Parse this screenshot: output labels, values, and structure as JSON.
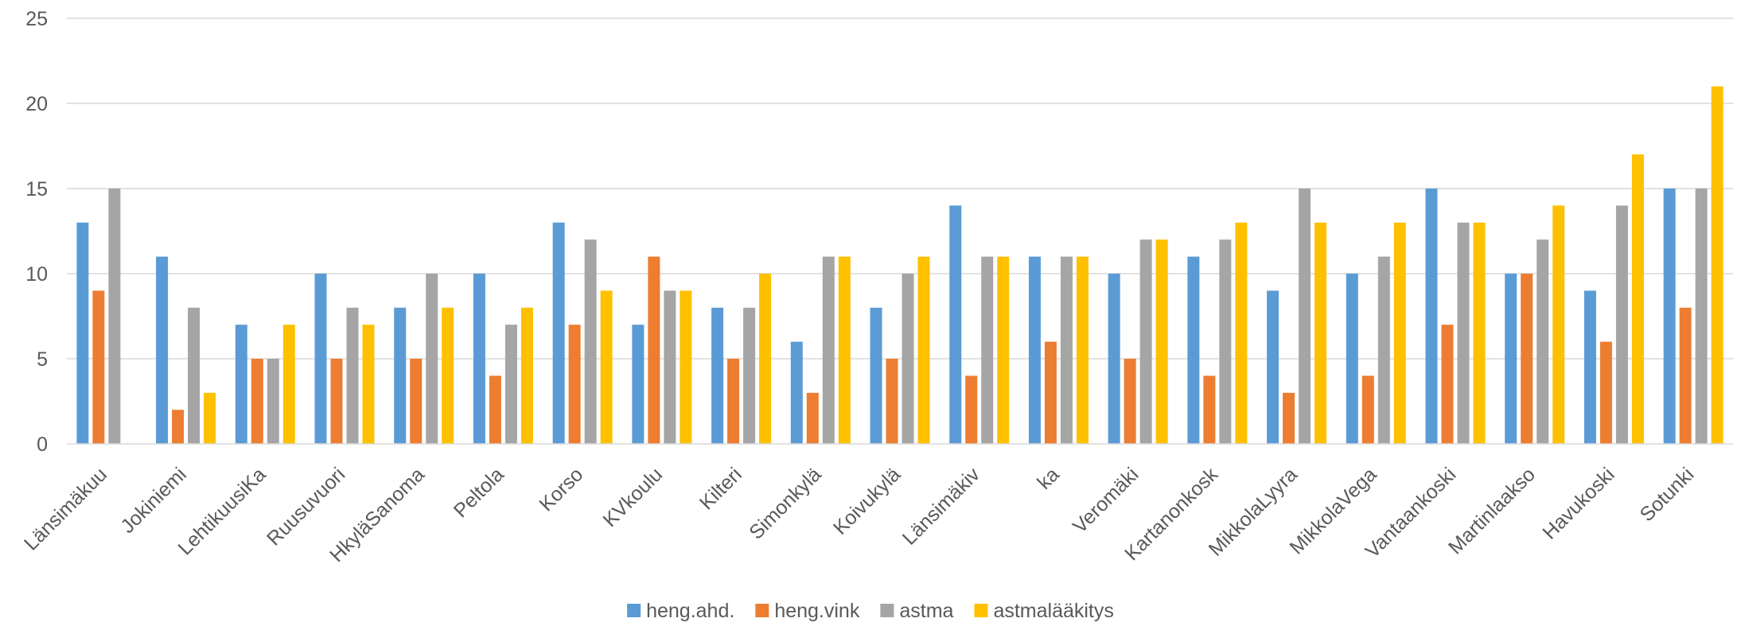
{
  "chart_data": {
    "type": "bar",
    "title": "",
    "xlabel": "",
    "ylabel": "",
    "ylim": [
      0,
      25
    ],
    "yticks": [
      0,
      5,
      10,
      15,
      20,
      25
    ],
    "grid": true,
    "legend_position": "bottom",
    "categories": [
      "Länsimäkuu",
      "Jokiniemi",
      "LehtikuusiKa",
      "Ruusuvuori",
      "HkyläSanoma",
      "Peltola",
      "Korso",
      "KVkoulu",
      "Kilteri",
      "Simonkylä",
      "Koivukylä",
      "Länsimäkiv",
      "ka",
      "Veromäki",
      "Kartanonkosk",
      "MikkolaLyyra",
      "MikkolaVega",
      "Vantaankoski",
      "Martinlaakso",
      "Havukoski",
      "Sotunki"
    ],
    "series": [
      {
        "name": "heng.ahd.",
        "color": "#5B9BD5",
        "values": [
          13,
          11,
          7,
          10,
          8,
          10,
          13,
          7,
          8,
          6,
          8,
          14,
          11,
          10,
          11,
          9,
          10,
          15,
          10,
          9,
          15
        ]
      },
      {
        "name": "heng.vink",
        "color": "#ED7D31",
        "values": [
          9,
          2,
          5,
          5,
          5,
          4,
          7,
          11,
          5,
          3,
          5,
          4,
          6,
          5,
          4,
          3,
          4,
          7,
          10,
          6,
          8
        ]
      },
      {
        "name": "astma",
        "color": "#A5A5A5",
        "values": [
          15,
          8,
          5,
          8,
          10,
          7,
          12,
          9,
          8,
          11,
          10,
          11,
          11,
          12,
          12,
          15,
          11,
          13,
          12,
          14,
          15
        ]
      },
      {
        "name": "astmalääkitys",
        "color": "#FFC000",
        "values": [
          0,
          3,
          7,
          7,
          8,
          8,
          9,
          9,
          10,
          11,
          11,
          11,
          11,
          12,
          13,
          13,
          13,
          13,
          14,
          17,
          21
        ]
      }
    ]
  }
}
